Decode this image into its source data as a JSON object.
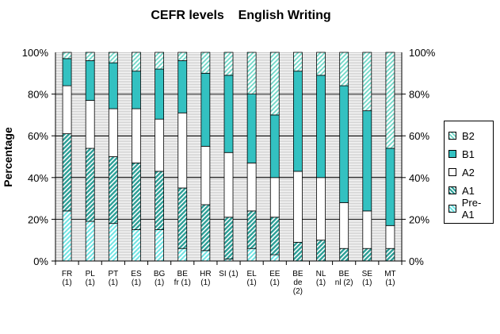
{
  "chart_data": {
    "type": "bar",
    "title": "CEFR levels    English Writing",
    "ylabel": "Percentage",
    "ylim": [
      0,
      100
    ],
    "left_ticks": [
      "0%",
      "20%",
      "40%",
      "60%",
      "80%",
      "100%"
    ],
    "right_ticks": [
      "100%",
      "80%",
      "60%",
      "40%",
      "20%",
      "0%"
    ],
    "grid": true,
    "legend_position": "right",
    "categories": [
      [
        "FR",
        "(1)"
      ],
      [
        "PL",
        "(1)"
      ],
      [
        "PT",
        "(1)"
      ],
      [
        "ES",
        "(1)"
      ],
      [
        "BG",
        "(1)"
      ],
      [
        "BE",
        "fr (1)"
      ],
      [
        "HR",
        "(1)"
      ],
      [
        "SI (1)"
      ],
      [
        "EL",
        "(1)"
      ],
      [
        "EE",
        "(1)"
      ],
      [
        "BE",
        "de",
        "(2)"
      ],
      [
        "NL",
        "(1)"
      ],
      [
        "BE",
        "nl (2)"
      ],
      [
        "SE",
        "(1)"
      ],
      [
        "MT",
        "(1)"
      ]
    ],
    "series": [
      {
        "name": "Pre-A1",
        "color": "#6fe3e3",
        "pattern": "diagonal-hatch",
        "values": [
          24,
          19,
          18,
          15,
          15,
          6,
          5,
          1,
          6,
          3,
          0,
          0,
          0,
          0,
          0
        ]
      },
      {
        "name": "A1",
        "color": "#2a9e96",
        "pattern": "diagonal-hatch",
        "values": [
          37,
          35,
          32,
          32,
          28,
          29,
          22,
          20,
          18,
          18,
          9,
          10,
          6,
          6,
          6
        ]
      },
      {
        "name": "A2",
        "color": "#ffffff",
        "pattern": "solid",
        "values": [
          23,
          23,
          23,
          26,
          25,
          36,
          28,
          31,
          23,
          19,
          34,
          30,
          22,
          18,
          11
        ]
      },
      {
        "name": "B1",
        "color": "#33c1c1",
        "pattern": "solid",
        "values": [
          13,
          19,
          22,
          18,
          24,
          25,
          35,
          37,
          33,
          30,
          48,
          49,
          56,
          48,
          37
        ]
      },
      {
        "name": "B2",
        "color": "#6fd7c7",
        "pattern": "diagonal-hatch",
        "values": [
          3,
          4,
          5,
          9,
          8,
          4,
          10,
          11,
          20,
          30,
          9,
          11,
          16,
          28,
          46
        ]
      }
    ]
  }
}
